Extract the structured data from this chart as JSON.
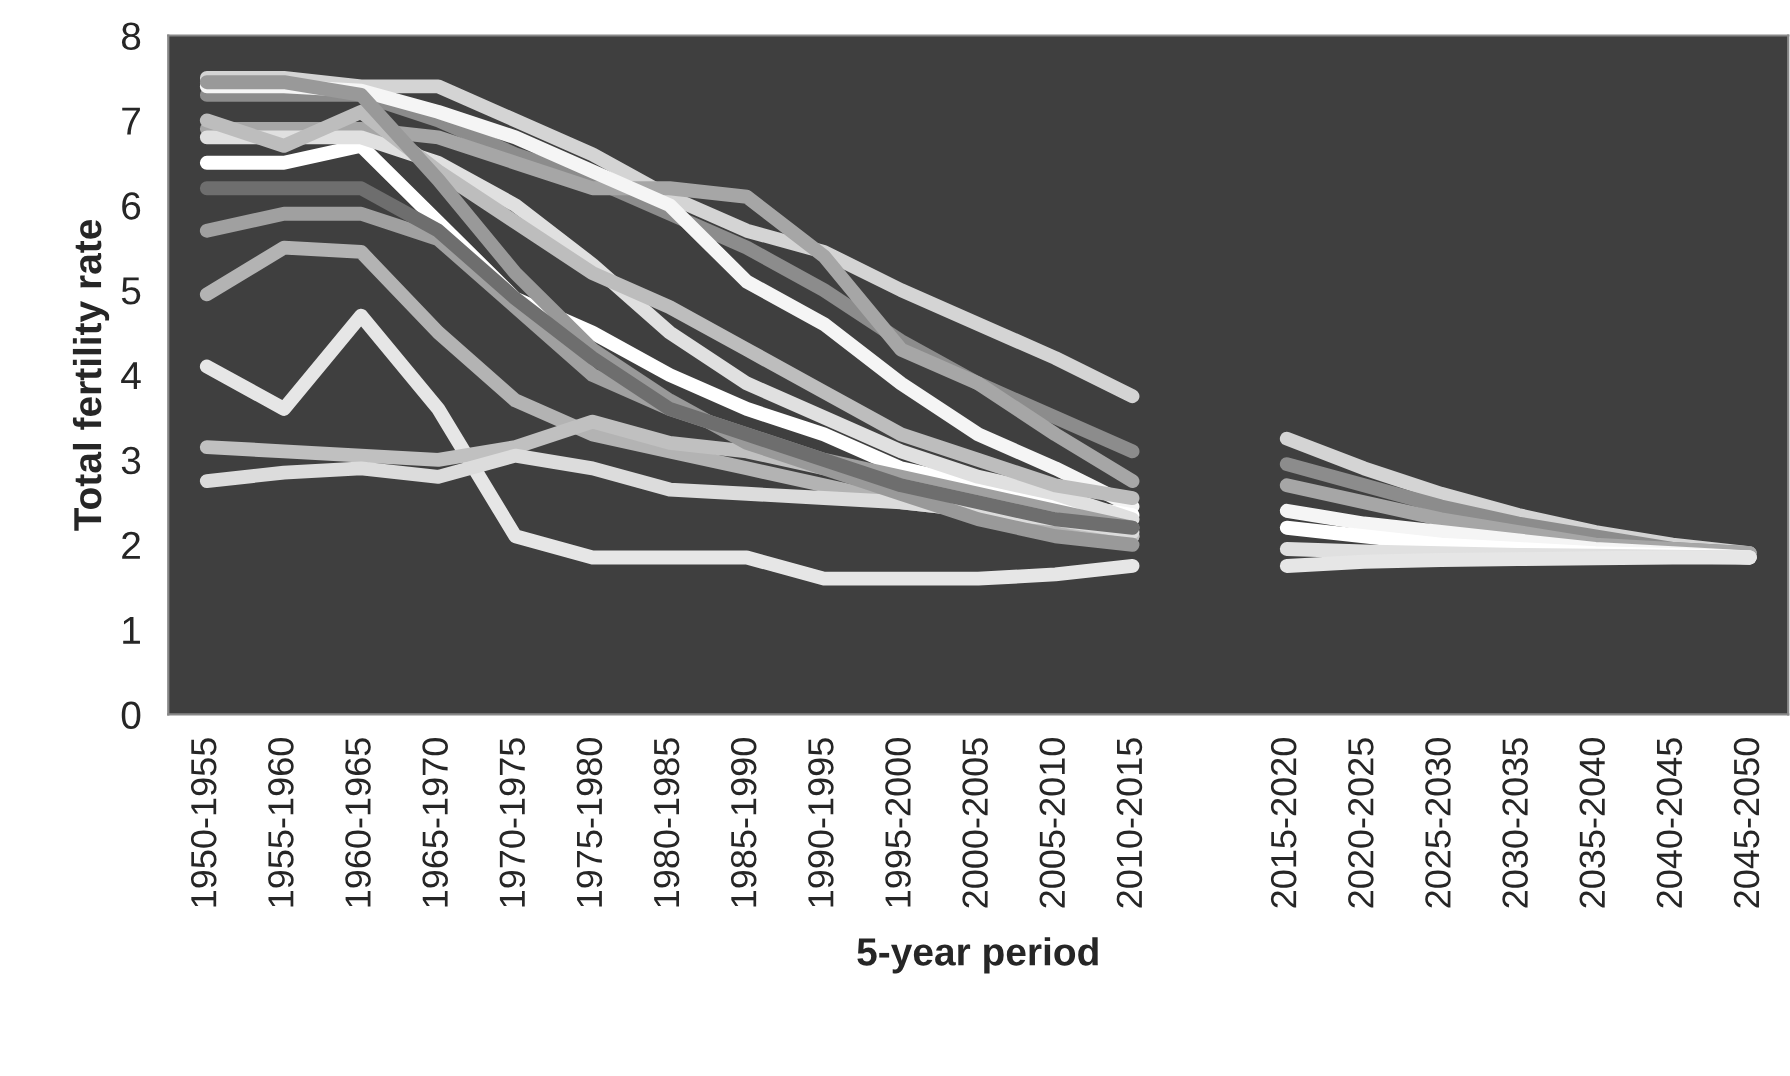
{
  "chart_data": {
    "type": "line",
    "xlabel": "5-year period",
    "ylabel": "Total fertility rate",
    "categories": [
      "1950-1955",
      "1955-1960",
      "1960-1965",
      "1965-1970",
      "1970-1975",
      "1975-1980",
      "1980-1985",
      "1985-1990",
      "1990-1995",
      "1995-2000",
      "2000-2005",
      "2005-2010",
      "2010-2015",
      null,
      "2015-2020",
      "2020-2025",
      "2025-2030",
      "2030-2035",
      "2035-2040",
      "2040-2045",
      "2045-2050"
    ],
    "ylim": [
      0,
      8
    ],
    "yticks": [
      0,
      1,
      2,
      3,
      4,
      5,
      6,
      7,
      8
    ],
    "grid": false,
    "legend": false,
    "series": [
      {
        "color": "#d4d4d4",
        "values": [
          7.5,
          7.5,
          7.4,
          7.4,
          7.0,
          6.6,
          6.1,
          5.7,
          5.45,
          5.0,
          4.6,
          4.2,
          3.75,
          null,
          3.25,
          2.9,
          2.6,
          2.35,
          2.15,
          2.0,
          1.9
        ]
      },
      {
        "color": "#8c8c8c",
        "values": [
          7.3,
          7.3,
          7.3,
          7.0,
          6.6,
          6.3,
          5.9,
          5.5,
          5.0,
          4.4,
          3.9,
          3.5,
          3.1,
          null,
          2.95,
          2.7,
          2.45,
          2.25,
          2.1,
          1.95,
          1.9
        ]
      },
      {
        "color": "#a6a6a6",
        "values": [
          6.9,
          6.9,
          6.9,
          6.8,
          6.5,
          6.2,
          6.2,
          6.1,
          5.4,
          4.3,
          3.9,
          3.3,
          2.75,
          null,
          2.7,
          2.5,
          2.3,
          2.15,
          2.0,
          1.95,
          1.9
        ]
      },
      {
        "color": "#f5f5f5",
        "values": [
          7.4,
          7.4,
          7.35,
          7.1,
          6.8,
          6.4,
          6.0,
          5.1,
          4.6,
          3.9,
          3.3,
          2.9,
          2.45,
          null,
          2.4,
          2.25,
          2.15,
          2.05,
          1.95,
          1.9,
          1.85
        ]
      },
      {
        "color": "#ffffff",
        "values": [
          6.5,
          6.5,
          6.7,
          5.8,
          4.9,
          4.5,
          4.0,
          3.6,
          3.3,
          2.9,
          2.7,
          2.5,
          2.35,
          null,
          2.2,
          2.1,
          2.0,
          1.95,
          1.9,
          1.88,
          1.85
        ]
      },
      {
        "color": "#e0e0e0",
        "values": [
          6.8,
          6.8,
          6.8,
          6.5,
          6.0,
          5.3,
          4.5,
          3.9,
          3.5,
          3.1,
          2.8,
          2.6,
          2.3,
          null,
          1.95,
          1.92,
          1.9,
          1.88,
          1.87,
          1.86,
          1.85
        ]
      },
      {
        "color": "#e6e6e6",
        "values": [
          4.1,
          3.6,
          4.7,
          3.6,
          2.1,
          1.85,
          1.85,
          1.85,
          1.6,
          1.6,
          1.6,
          1.65,
          1.75,
          null,
          1.75,
          1.8,
          1.82,
          1.83,
          1.84,
          1.85,
          1.85
        ]
      },
      {
        "color": "#a0a0a0",
        "values": [
          5.7,
          5.9,
          5.9,
          5.6,
          4.8,
          4.0,
          3.6,
          3.3,
          3.0,
          2.8,
          2.6,
          2.4,
          2.2,
          null,
          null,
          null,
          null,
          null,
          null,
          null,
          null
        ]
      },
      {
        "color": "#b3b3b3",
        "values": [
          4.95,
          5.5,
          5.45,
          4.5,
          3.7,
          3.3,
          3.1,
          2.9,
          2.7,
          2.5,
          2.4,
          2.2,
          2.1,
          null,
          null,
          null,
          null,
          null,
          null,
          null,
          null
        ]
      },
      {
        "color": "#c0c0c0",
        "values": [
          3.15,
          3.1,
          3.05,
          3.0,
          3.15,
          3.45,
          3.2,
          3.1,
          2.9,
          2.7,
          2.5,
          2.3,
          2.1,
          null,
          null,
          null,
          null,
          null,
          null,
          null,
          null
        ]
      },
      {
        "color": "#dcdcdc",
        "values": [
          2.75,
          2.85,
          2.9,
          2.8,
          3.05,
          2.9,
          2.65,
          2.6,
          2.55,
          2.5,
          2.4,
          2.3,
          2.15,
          null,
          null,
          null,
          null,
          null,
          null,
          null,
          null
        ]
      },
      {
        "color": "#bdbdbd",
        "values": [
          7.0,
          6.7,
          7.1,
          6.4,
          5.8,
          5.2,
          4.8,
          4.3,
          3.8,
          3.3,
          3.0,
          2.7,
          2.55,
          null,
          null,
          null,
          null,
          null,
          null,
          null,
          null
        ]
      },
      {
        "color": "#999999",
        "values": [
          7.45,
          7.45,
          7.3,
          6.3,
          5.2,
          4.3,
          3.7,
          3.2,
          2.9,
          2.6,
          2.3,
          2.1,
          2.0,
          null,
          null,
          null,
          null,
          null,
          null,
          null,
          null
        ]
      },
      {
        "color": "#6e6e6e",
        "values": [
          6.2,
          6.2,
          6.2,
          5.7,
          4.9,
          4.2,
          3.6,
          3.3,
          3.0,
          2.7,
          2.5,
          2.3,
          2.2,
          null,
          null,
          null,
          null,
          null,
          null,
          null,
          null
        ]
      }
    ]
  }
}
